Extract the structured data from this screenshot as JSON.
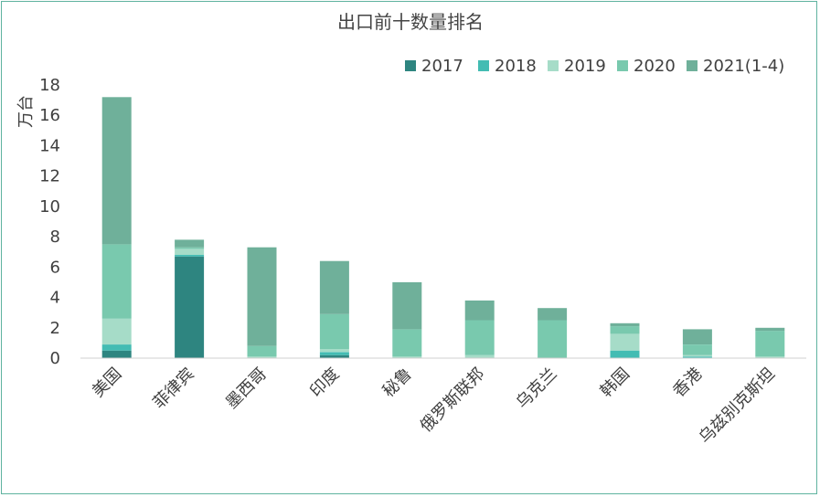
{
  "chart_data": {
    "type": "bar",
    "stacked": true,
    "title": "出口前十数量排名",
    "ylabel": "万台",
    "xlabel": "",
    "ylim": [
      0,
      18
    ],
    "yticks": [
      0,
      2,
      4,
      6,
      8,
      10,
      12,
      14,
      16,
      18
    ],
    "grid": false,
    "legend_position": "top-right",
    "categories": [
      "美国",
      "菲律宾",
      "墨西哥",
      "印度",
      "秘鲁",
      "俄罗斯联邦",
      "乌克兰",
      "韩国",
      "香港",
      "乌兹别克斯坦"
    ],
    "series": [
      {
        "name": "2017",
        "color": "#2e8580",
        "values": [
          0.5,
          6.7,
          0,
          0.2,
          0,
          0,
          0,
          0,
          0,
          0
        ]
      },
      {
        "name": "2018",
        "color": "#43bcb3",
        "values": [
          0.4,
          0.1,
          0,
          0.2,
          0,
          0,
          0,
          0.5,
          0.1,
          0
        ]
      },
      {
        "name": "2019",
        "color": "#a6dcc8",
        "values": [
          1.7,
          0.4,
          0.1,
          0.2,
          0.1,
          0.2,
          0,
          1.1,
          0.1,
          0.1
        ]
      },
      {
        "name": "2020",
        "color": "#79c9ae",
        "values": [
          4.9,
          0.1,
          0.7,
          2.3,
          1.8,
          2.3,
          2.5,
          0.5,
          0.7,
          1.7
        ]
      },
      {
        "name": "2021(1-4)",
        "color": "#6fb09a",
        "values": [
          9.7,
          0.5,
          6.5,
          3.5,
          3.1,
          1.3,
          0.8,
          0.2,
          1.0,
          0.2
        ]
      }
    ]
  }
}
